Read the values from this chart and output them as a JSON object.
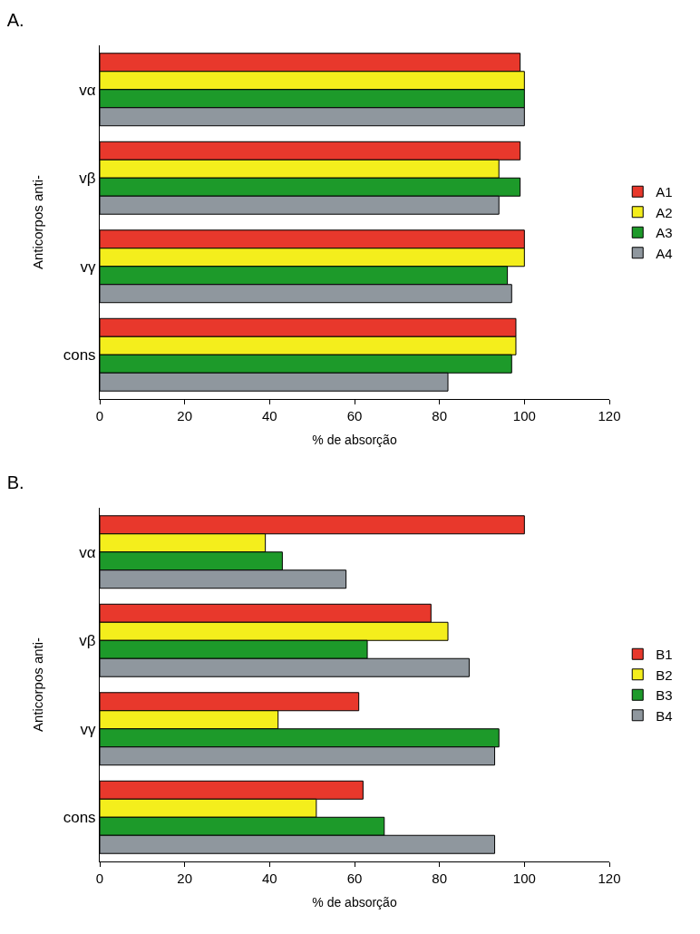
{
  "chart_data": [
    {
      "type": "bar",
      "orientation": "horizontal",
      "title": "A.",
      "xlabel": "% de absorção",
      "ylabel": "Anticorpos anti-",
      "categories": [
        "vα",
        "vβ",
        "vγ",
        "cons"
      ],
      "xlim": [
        0,
        120
      ],
      "xticks": [
        0,
        20,
        40,
        60,
        80,
        100,
        120
      ],
      "grid": false,
      "legend": "right",
      "series": [
        {
          "name": "A1",
          "color": "#e8382c",
          "values": [
            99,
            99,
            100,
            98
          ]
        },
        {
          "name": "A2",
          "color": "#f4ee1c",
          "values": [
            100,
            94,
            100,
            98
          ]
        },
        {
          "name": "A3",
          "color": "#1d9a2a",
          "values": [
            100,
            99,
            96,
            97
          ]
        },
        {
          "name": "A4",
          "color": "#8f979e",
          "values": [
            100,
            94,
            97,
            82
          ]
        }
      ]
    },
    {
      "type": "bar",
      "orientation": "horizontal",
      "title": "B.",
      "xlabel": "% de absorção",
      "ylabel": "Anticorpos anti-",
      "categories": [
        "vα",
        "vβ",
        "vγ",
        "cons"
      ],
      "xlim": [
        0,
        120
      ],
      "xticks": [
        0,
        20,
        40,
        60,
        80,
        100,
        120
      ],
      "grid": false,
      "legend": "right",
      "series": [
        {
          "name": "B1",
          "color": "#e8382c",
          "values": [
            100,
            78,
            61,
            62
          ]
        },
        {
          "name": "B2",
          "color": "#f4ee1c",
          "values": [
            39,
            82,
            42,
            51
          ]
        },
        {
          "name": "B3",
          "color": "#1d9a2a",
          "values": [
            43,
            63,
            94,
            67
          ]
        },
        {
          "name": "B4",
          "color": "#8f979e",
          "values": [
            58,
            87,
            93,
            93
          ]
        }
      ]
    }
  ]
}
